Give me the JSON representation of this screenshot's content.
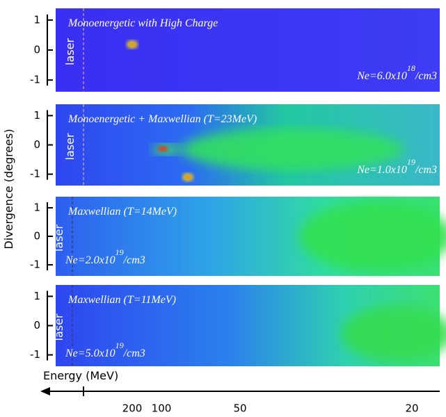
{
  "y_axis_label": "Divergence (degrees)",
  "divergence_ticks": [
    "1",
    "0",
    "-1"
  ],
  "panels": [
    {
      "title": "Monoenergetic with High Charge",
      "laser": "laser",
      "ne": {
        "base": "Ne=6.0x10",
        "exp": "18",
        "unit": "/cm3"
      }
    },
    {
      "title": "Monoenergetic + Maxwellian (T=23MeV)",
      "laser": "laser",
      "ne": {
        "base": "Ne=1.0x10",
        "exp": "19",
        "unit": "/cm3"
      }
    },
    {
      "title": "Maxwellian (T=14MeV)",
      "laser": "laser",
      "ne": {
        "base": "Ne=2.0x10",
        "exp": "19",
        "unit": "/cm3"
      }
    },
    {
      "title": "Maxwellian (T=11MeV)",
      "laser": "laser",
      "ne": {
        "base": "Ne=5.0x10",
        "exp": "19",
        "unit": "/cm3"
      }
    }
  ],
  "energy_axis": {
    "label": "Energy (MeV)",
    "ticks": [
      "200",
      "100",
      "50",
      "20"
    ]
  }
}
